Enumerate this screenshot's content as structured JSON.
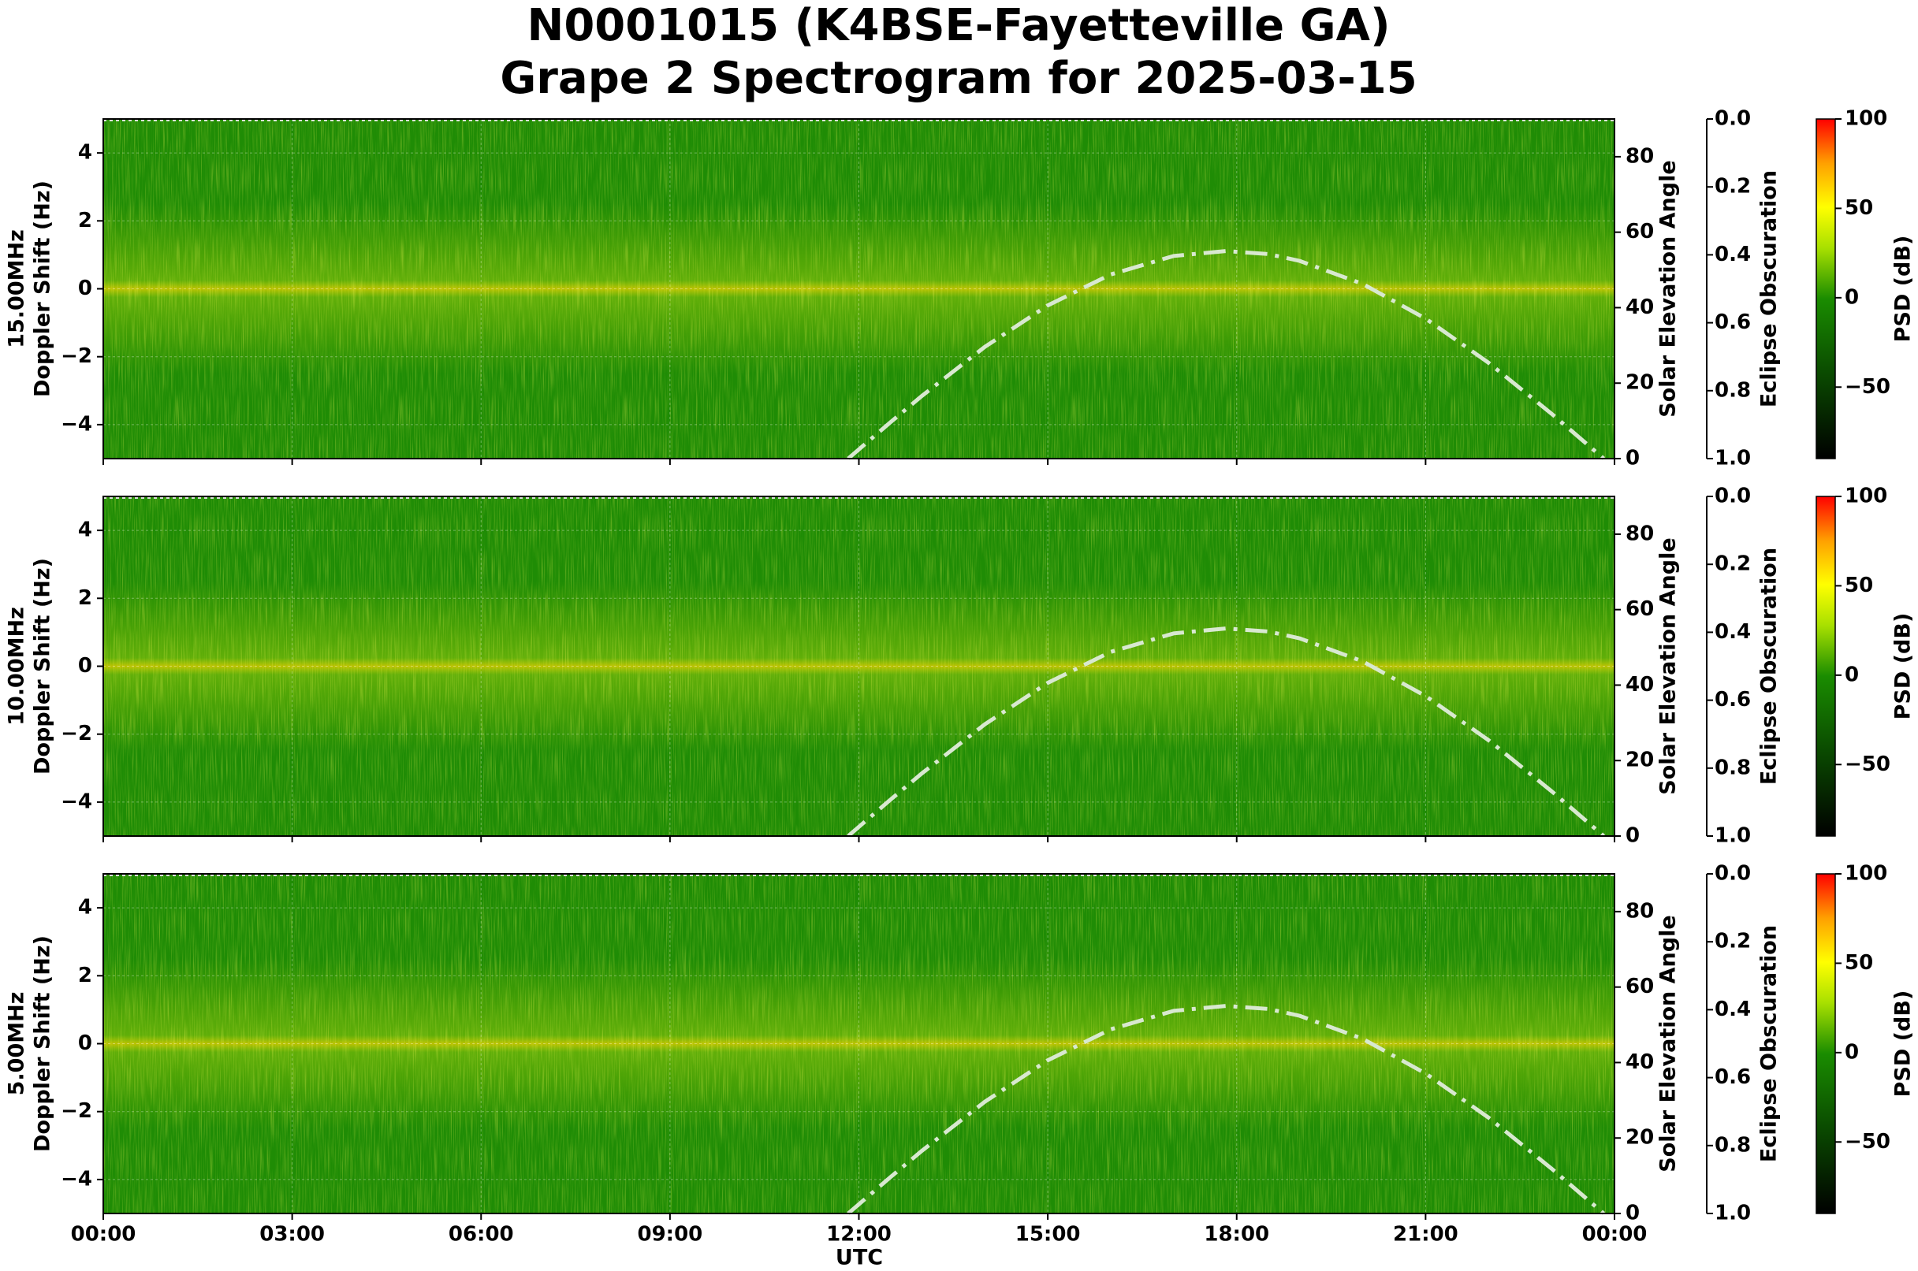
{
  "title": [
    "N0001015 (K4BSE-Fayetteville GA)",
    "Grape 2 Spectrogram for 2025-03-15"
  ],
  "x_axis": {
    "label": "UTC",
    "lim": [
      0,
      24
    ],
    "ticks": [
      {
        "value": 0,
        "label": "00:00"
      },
      {
        "value": 3,
        "label": "03:00"
      },
      {
        "value": 6,
        "label": "06:00"
      },
      {
        "value": 9,
        "label": "09:00"
      },
      {
        "value": 12,
        "label": "12:00"
      },
      {
        "value": 15,
        "label": "15:00"
      },
      {
        "value": 18,
        "label": "18:00"
      },
      {
        "value": 21,
        "label": "21:00"
      },
      {
        "value": 24,
        "label": "00:00"
      }
    ]
  },
  "chart_data": [
    {
      "type": "spectrogram",
      "ylabel": [
        "15.00MHz",
        "Doppler Shift (Hz)"
      ],
      "ylim": [
        -5,
        5
      ],
      "yticks": [
        {
          "value": -4,
          "label": "−4"
        },
        {
          "value": -2,
          "label": "−2"
        },
        0,
        2,
        4
      ],
      "y2label": "Solar Elevation Angle",
      "y2lim": [
        0,
        90
      ],
      "y2ticks": [
        0,
        20,
        40,
        60,
        80
      ],
      "y3label": "Eclipse Obscuration",
      "y3lim": [
        1,
        0
      ],
      "y3ticks": [
        {
          "value": 0,
          "label": "0.0"
        },
        0.2,
        0.4,
        0.6,
        0.8,
        {
          "value": 1,
          "label": "1.0"
        }
      ],
      "colorbar_label": "PSD (dB)",
      "clim": [
        -90,
        100
      ],
      "cticks": [
        {
          "value": -50,
          "label": "−50"
        },
        0,
        50,
        100
      ],
      "series": [
        {
          "axis": "y2",
          "color": "#d8e8d0",
          "x": [
            11.83,
            12.5,
            13,
            14,
            15,
            16,
            17,
            17.83,
            18.5,
            19,
            20,
            21,
            22,
            23,
            23.83
          ],
          "values": [
            0,
            9.6,
            16.6,
            29.6,
            40.6,
            48.8,
            53.7,
            55,
            54.2,
            52.4,
            46.3,
            37.1,
            25.4,
            11.9,
            0
          ]
        }
      ]
    },
    {
      "type": "spectrogram",
      "ylabel": [
        "10.00MHz",
        "Doppler Shift (Hz)"
      ],
      "ylim": [
        -5,
        5
      ],
      "yticks": [
        {
          "value": -4,
          "label": "−4"
        },
        {
          "value": -2,
          "label": "−2"
        },
        0,
        2,
        4
      ],
      "y2label": "Solar Elevation Angle",
      "y2lim": [
        0,
        90
      ],
      "y2ticks": [
        0,
        20,
        40,
        60,
        80
      ],
      "y3label": "Eclipse Obscuration",
      "y3lim": [
        1,
        0
      ],
      "y3ticks": [
        {
          "value": 0,
          "label": "0.0"
        },
        0.2,
        0.4,
        0.6,
        0.8,
        {
          "value": 1,
          "label": "1.0"
        }
      ],
      "colorbar_label": "PSD (dB)",
      "clim": [
        -90,
        100
      ],
      "cticks": [
        {
          "value": -50,
          "label": "−50"
        },
        0,
        50,
        100
      ],
      "series": [
        {
          "axis": "y2",
          "color": "#d8e8d0",
          "x": [
            11.83,
            12.5,
            13,
            14,
            15,
            16,
            17,
            17.83,
            18.5,
            19,
            20,
            21,
            22,
            23,
            23.83
          ],
          "values": [
            0,
            9.6,
            16.6,
            29.6,
            40.6,
            48.8,
            53.7,
            55,
            54.2,
            52.4,
            46.3,
            37.1,
            25.4,
            11.9,
            0
          ]
        }
      ]
    },
    {
      "type": "spectrogram",
      "ylabel": [
        "5.00MHz",
        "Doppler Shift (Hz)"
      ],
      "ylim": [
        -5,
        5
      ],
      "yticks": [
        {
          "value": -4,
          "label": "−4"
        },
        {
          "value": -2,
          "label": "−2"
        },
        0,
        2,
        4
      ],
      "y2label": "Solar Elevation Angle",
      "y2lim": [
        0,
        90
      ],
      "y2ticks": [
        0,
        20,
        40,
        60,
        80
      ],
      "y3label": "Eclipse Obscuration",
      "y3lim": [
        1,
        0
      ],
      "y3ticks": [
        {
          "value": 0,
          "label": "0.0"
        },
        0.2,
        0.4,
        0.6,
        0.8,
        {
          "value": 1,
          "label": "1.0"
        }
      ],
      "colorbar_label": "PSD (dB)",
      "clim": [
        -90,
        100
      ],
      "cticks": [
        {
          "value": -50,
          "label": "−50"
        },
        0,
        50,
        100
      ],
      "series": [
        {
          "axis": "y2",
          "color": "#d8e8d0",
          "x": [
            11.83,
            12.5,
            13,
            14,
            15,
            16,
            17,
            17.83,
            18.5,
            19,
            20,
            21,
            22,
            23,
            23.83
          ],
          "values": [
            0,
            9.6,
            16.6,
            29.6,
            40.6,
            48.8,
            53.7,
            55,
            54.2,
            52.4,
            46.3,
            37.1,
            25.4,
            11.9,
            0
          ]
        }
      ]
    }
  ]
}
